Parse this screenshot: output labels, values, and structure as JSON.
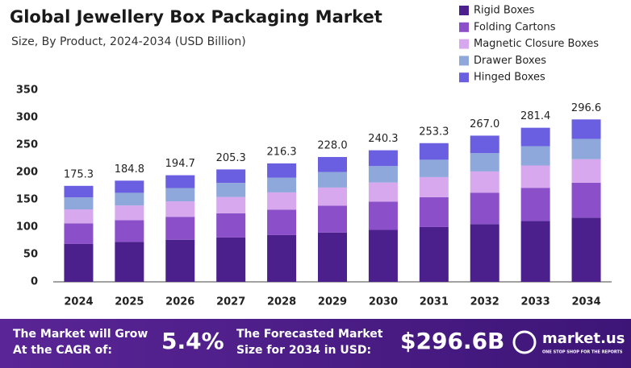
{
  "chart_data": {
    "type": "stacked_bar",
    "title": "Global Jewellery Box Packaging Market",
    "subtitle": "Size, By Product, 2024-2034 (USD Billion)",
    "categories": [
      "2024",
      "2025",
      "2026",
      "2027",
      "2028",
      "2029",
      "2030",
      "2031",
      "2032",
      "2033",
      "2034"
    ],
    "series": [
      {
        "name": "Rigid Boxes",
        "color": "#4b1f8c",
        "values": [
          69.2,
          73.0,
          76.9,
          81.1,
          85.4,
          90.1,
          94.9,
          100.1,
          105.5,
          111.2,
          117.2
        ]
      },
      {
        "name": "Folding Cartons",
        "color": "#8a4fc9",
        "values": [
          37.7,
          39.7,
          41.9,
          44.1,
          46.5,
          49.0,
          51.7,
          54.5,
          57.4,
          60.5,
          63.8
        ]
      },
      {
        "name": "Magnetic Closure Boxes",
        "color": "#d7a8ee",
        "values": [
          25.4,
          26.8,
          28.2,
          29.8,
          31.4,
          33.1,
          34.8,
          36.7,
          38.7,
          40.8,
          43.0
        ]
      },
      {
        "name": "Drawer Boxes",
        "color": "#8fa8dc",
        "values": [
          21.9,
          23.1,
          24.3,
          25.7,
          27.0,
          28.5,
          30.0,
          31.7,
          33.4,
          35.2,
          37.1
        ]
      },
      {
        "name": "Hinged Boxes",
        "color": "#6a5fe0",
        "values": [
          21.1,
          22.2,
          23.4,
          24.6,
          26.0,
          27.3,
          28.9,
          30.3,
          32.0,
          33.7,
          35.5
        ]
      }
    ],
    "totals": [
      175.3,
      184.8,
      194.7,
      205.3,
      216.3,
      228.0,
      240.3,
      253.3,
      267.0,
      281.4,
      296.6
    ],
    "total_labels": [
      "175.3",
      "184.8",
      "194.7",
      "205.3",
      "216.3",
      "228.0",
      "240.3",
      "253.3",
      "267.0",
      "281.4",
      "296.6"
    ],
    "ylim": [
      0,
      350
    ],
    "yticks": [
      0,
      50,
      100,
      150,
      200,
      250,
      300,
      350
    ],
    "grid": false,
    "legend": "top-right"
  },
  "footer": {
    "cagr_text": [
      "The Market will Grow",
      "At the CAGR of:"
    ],
    "cagr": "5.4%",
    "forecast_text": [
      "The Forecasted Market",
      "Size for 2034 in USD:"
    ],
    "forecast": "$296.6B",
    "brand": "market.us",
    "tagline": "ONE STOP SHOP FOR THE REPORTS"
  }
}
